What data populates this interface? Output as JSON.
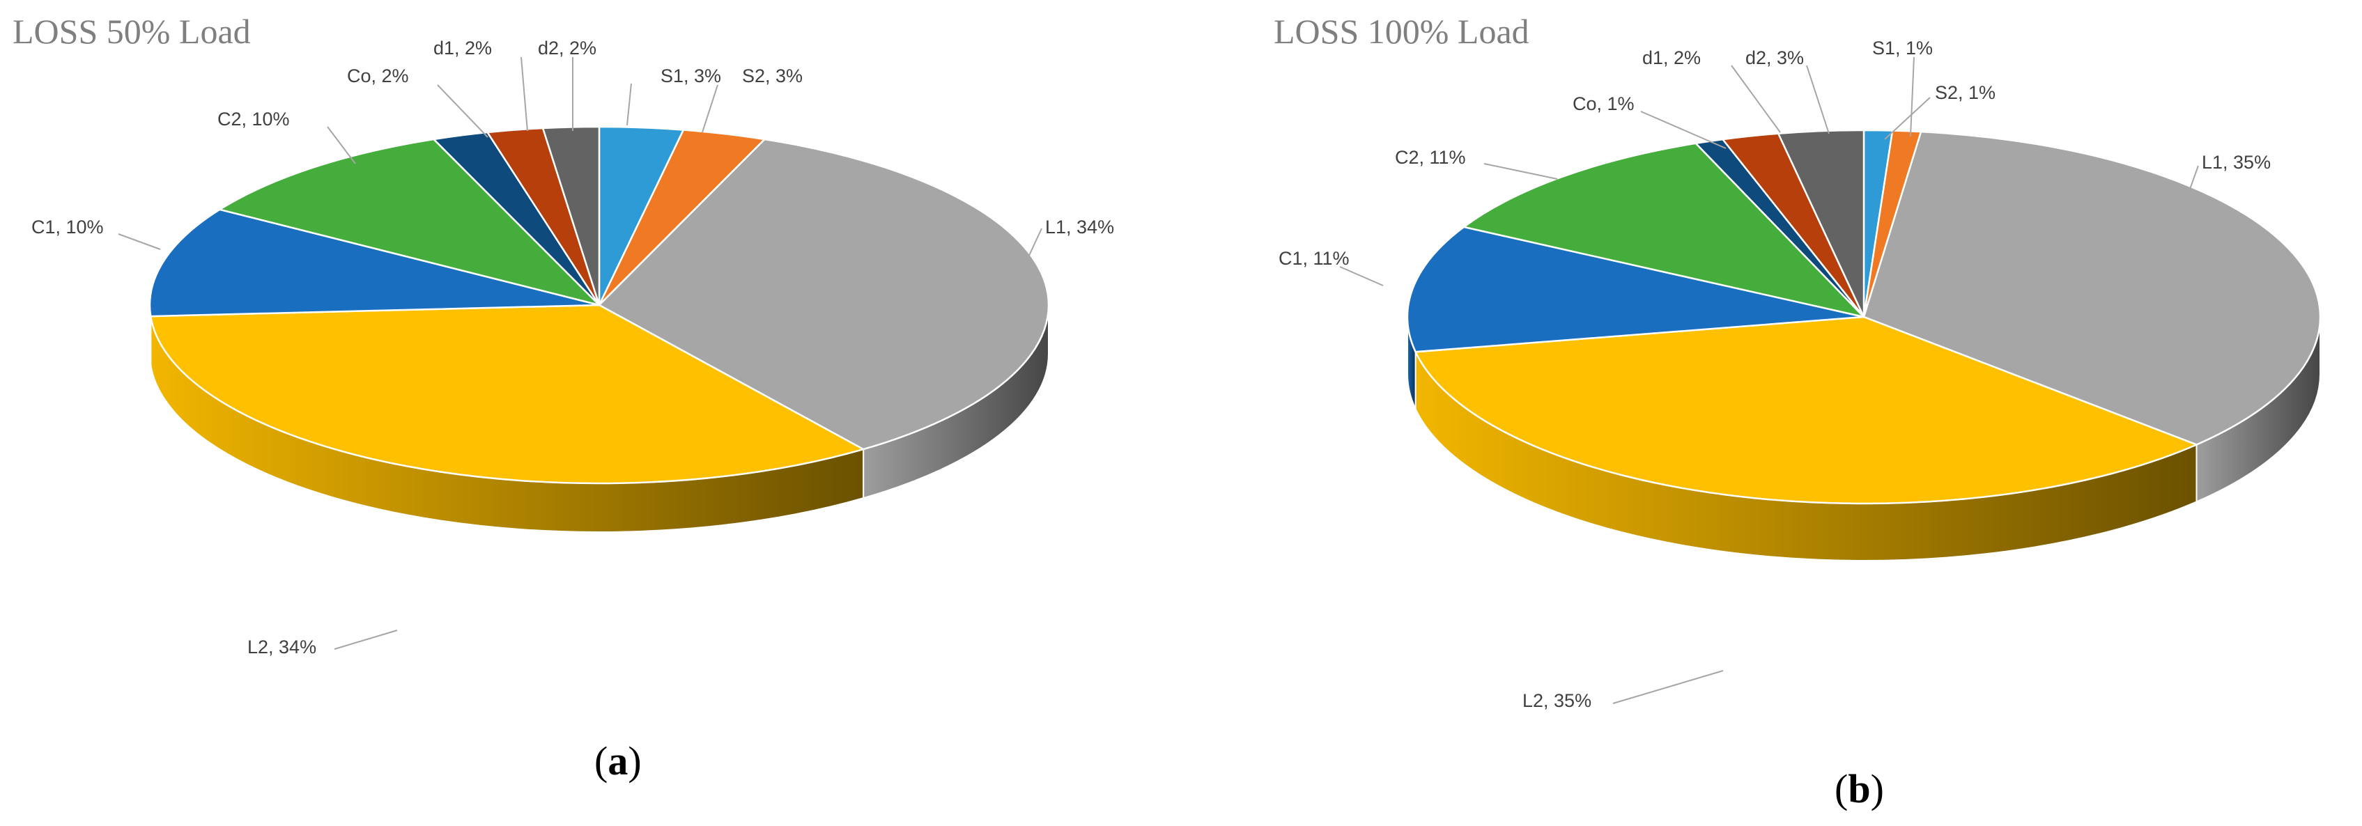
{
  "chart_data": [
    {
      "type": "pie",
      "title": "LOSS 50% Load",
      "caption": "a",
      "categories": [
        "S1",
        "S2",
        "L1",
        "L2",
        "C1",
        "C2",
        "Co",
        "d1",
        "d2"
      ],
      "values": [
        3,
        3,
        34,
        34,
        10,
        10,
        2,
        2,
        2
      ],
      "labels": [
        "S1, 3%",
        "S2, 3%",
        "L1, 34%",
        "L2, 34%",
        "C1, 10%",
        "C2, 10%",
        "Co, 2%",
        "d1, 2%",
        "d2, 2%"
      ],
      "colors": [
        "#2e9ad6",
        "#f07a23",
        "#a6a6a6",
        "#ffc000",
        "#1a6ec0",
        "#45ad3c",
        "#0e4a7c",
        "#b73f0c",
        "#636363"
      ],
      "style": "3d-pie"
    },
    {
      "type": "pie",
      "title": "LOSS 100% Load",
      "caption": "b",
      "categories": [
        "S1",
        "S2",
        "L1",
        "L2",
        "C1",
        "C2",
        "Co",
        "d1",
        "d2"
      ],
      "values": [
        1,
        1,
        35,
        35,
        11,
        11,
        1,
        2,
        3
      ],
      "labels": [
        "S1, 1%",
        "S2, 1%",
        "L1, 35%",
        "L2, 35%",
        "C1, 11%",
        "C2, 11%",
        "Co, 1%",
        "d1, 2%",
        "d2, 3%"
      ],
      "colors": [
        "#2e9ad6",
        "#f07a23",
        "#a6a6a6",
        "#ffc000",
        "#1a6ec0",
        "#45ad3c",
        "#0e4a7c",
        "#b73f0c",
        "#636363"
      ],
      "style": "3d-pie"
    }
  ]
}
